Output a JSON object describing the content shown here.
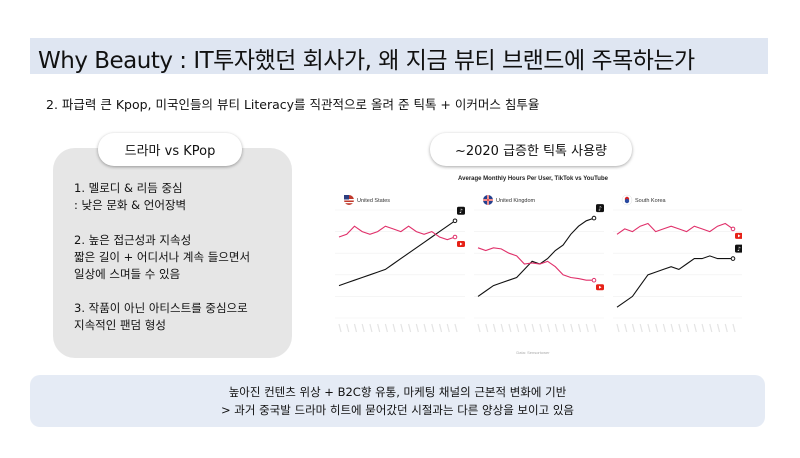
{
  "title": "Why Beauty : IT투자했던 회사가, 왜 지금 뷰티 브랜드에 주목하는가",
  "subtitle": "2. 파급력 큰 Kpop, 미국인들의 뷰티 Literacy를 직관적으로 올려 준 틱톡 + 이커머스 침투율",
  "left_card": {
    "heading": "드라마 vs KPop",
    "points": [
      {
        "line1": "1. 멜로디 & 리듬 중심",
        "line2": ": 낮은 문화 & 언어장벽"
      },
      {
        "line1": "2. 높은 접근성과 지속성",
        "line2": "짧은 길이 + 어디서나 계속 들으면서",
        "line3": "일상에 스며들 수 있음"
      },
      {
        "line1": "3. 작품이 아닌 아티스트를 중심으로",
        "line2": "지속적인 팬덤 형성"
      }
    ]
  },
  "right_card": {
    "heading": "~2020 급증한 틱톡 사용량",
    "chart_title": "Average Monthly Hours Per User, TikTok vs YouTube",
    "footer": "Data: Sensortower"
  },
  "chart_data": {
    "type": "line",
    "title": "Average Monthly Hours Per User, TikTok vs YouTube",
    "panels": [
      {
        "name": "United States",
        "flag": "us-flag",
        "series": [
          {
            "name": "TikTok",
            "color": "#111111",
            "values": [
              6,
              6.5,
              7,
              7.5,
              8,
              8.5,
              9,
              10,
              11,
              12,
              13,
              14,
              15,
              16,
              17,
              18
            ]
          },
          {
            "name": "YouTube",
            "color": "#e0306a",
            "values": [
              15,
              15.5,
              17,
              16,
              15.5,
              16,
              17,
              16.5,
              16,
              17,
              16,
              15.5,
              16,
              15,
              14.5,
              15
            ]
          }
        ]
      },
      {
        "name": "United Kingdom",
        "flag": "uk-flag",
        "series": [
          {
            "name": "TikTok",
            "color": "#111111",
            "values": [
              4,
              5,
              6,
              6.5,
              7,
              7.5,
              9,
              10.5,
              10,
              11,
              12.5,
              13.5,
              15.5,
              17,
              18,
              18.5
            ]
          },
          {
            "name": "YouTube",
            "color": "#e0306a",
            "values": [
              13,
              12.5,
              13,
              12.8,
              12,
              11.5,
              10,
              10.2,
              10,
              10.5,
              9.5,
              8,
              7.5,
              7.3,
              7,
              7
            ]
          }
        ]
      },
      {
        "name": "South Korea",
        "flag": "kr-flag",
        "series": [
          {
            "name": "TikTok",
            "color": "#111111",
            "values": [
              2,
              3,
              4,
              6,
              8,
              8.5,
              9,
              9.5,
              9,
              10,
              11,
              11,
              11.5,
              11,
              11,
              11
            ]
          },
          {
            "name": "YouTube",
            "color": "#e0306a",
            "values": [
              15.5,
              16.5,
              16,
              17,
              17.5,
              16,
              16.5,
              17,
              16.5,
              16,
              17,
              16.5,
              16,
              17,
              17.5,
              16.5
            ]
          }
        ]
      }
    ]
  },
  "bottom": {
    "line1": "높아진 컨텐츠 위상 + B2C향 유통, 마케팅 채널의 근본적 변화에 기반",
    "line2": ">  과거 중국발 드라마 히트에 묻어갔던 시절과는 다른 양상을 보이고 있음"
  }
}
